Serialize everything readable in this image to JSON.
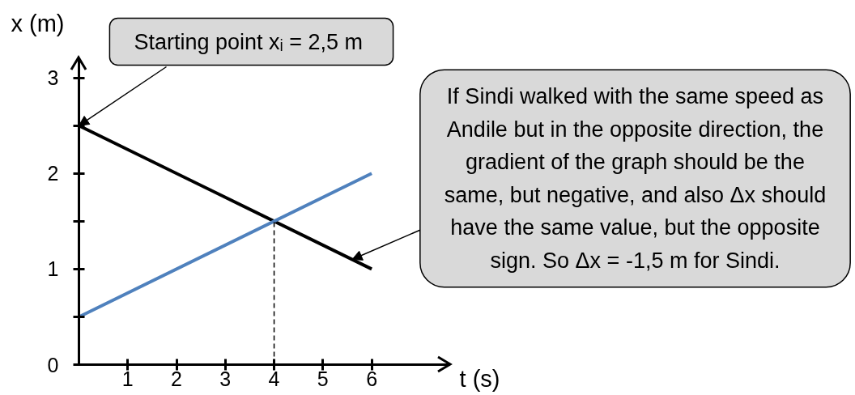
{
  "chart_data": {
    "type": "line",
    "xlabel": "t (s)",
    "ylabel": "x (m)",
    "x": [
      0,
      6
    ],
    "series": [
      {
        "color": "#000000",
        "values": [
          2.5,
          1
        ]
      },
      {
        "color": "#4f81bd",
        "values": [
          0.5,
          2
        ]
      },
      {
        "color": "#000000",
        "x": [
          4,
          4
        ],
        "values": [
          0,
          1.5
        ],
        "line_style": "dashed"
      }
    ],
    "xlim": [
      0,
      7.6
    ],
    "ylim": [
      0,
      3.2
    ],
    "xticks": [
      1,
      2,
      3,
      4,
      5,
      6
    ],
    "yticks": [
      0,
      {
        "value": 0.5,
        "label": null
      },
      1,
      {
        "value": 1.5,
        "label": null
      },
      2,
      {
        "value": 2.5,
        "label": null
      },
      3
    ],
    "line_style": "solid",
    "annotations": [
      {
        "text": "Starting point  xᵢ = 2,5 m",
        "x": 0,
        "y": 2.5
      },
      {
        "text": "If Sindi walked with the same speed as\nAndile but in the opposite direction, the\ngradient of the graph should be the\nsame, but negative, and also Δx should\nhave the same value, but the opposite\nsign. So Δx = -1,5 m for Sindi.",
        "x": 5.6,
        "y": 1.1
      }
    ]
  }
}
